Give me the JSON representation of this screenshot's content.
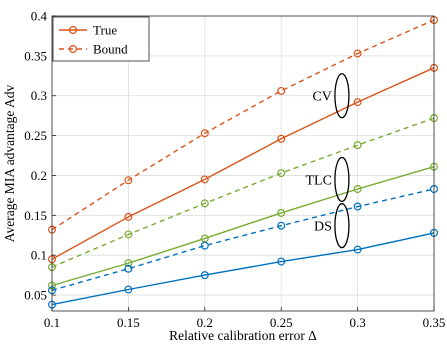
{
  "chart_data": {
    "type": "line",
    "xlabel": "Relative calibration error  Δ",
    "ylabel": "Average MIA advantage  Adv",
    "x": [
      0.1,
      0.15,
      0.2,
      0.25,
      0.3,
      0.35
    ],
    "xlim": [
      0.1,
      0.35
    ],
    "ylim": [
      0.03,
      0.4
    ],
    "xticks": [
      "0.1",
      "0.15",
      "0.2",
      "0.25",
      "0.3",
      "0.35"
    ],
    "yticks": [
      "0.05",
      "0.1",
      "0.15",
      "0.2",
      "0.25",
      "0.3",
      "0.35",
      "0.4"
    ],
    "grid": true,
    "legend_placement": "top-left",
    "legend": [
      {
        "label": "True",
        "style": "solid",
        "color": "#d95319"
      },
      {
        "label": "Bound",
        "style": "dashed",
        "color": "#d95319"
      }
    ],
    "series": [
      {
        "group": "CV",
        "kind": "True",
        "color": "#d95319",
        "style": "solid",
        "values": [
          0.095,
          0.148,
          0.195,
          0.246,
          0.292,
          0.335
        ]
      },
      {
        "group": "CV",
        "kind": "Bound",
        "color": "#d95319",
        "style": "dashed",
        "values": [
          0.132,
          0.194,
          0.253,
          0.306,
          0.353,
          0.395
        ]
      },
      {
        "group": "TLC",
        "kind": "True",
        "color": "#77ac30",
        "style": "solid",
        "values": [
          0.062,
          0.09,
          0.121,
          0.153,
          0.183,
          0.211
        ]
      },
      {
        "group": "TLC",
        "kind": "Bound",
        "color": "#77ac30",
        "style": "dashed",
        "values": [
          0.085,
          0.126,
          0.165,
          0.203,
          0.238,
          0.272
        ]
      },
      {
        "group": "DS",
        "kind": "True",
        "color": "#0072bd",
        "style": "solid",
        "values": [
          0.038,
          0.057,
          0.075,
          0.092,
          0.107,
          0.128
        ]
      },
      {
        "group": "DS",
        "kind": "Bound",
        "color": "#0072bd",
        "style": "dashed",
        "values": [
          0.056,
          0.083,
          0.112,
          0.137,
          0.161,
          0.183
        ]
      }
    ],
    "annotations": [
      {
        "label": "CV",
        "x": 0.276,
        "y": 0.3
      },
      {
        "label": "TLC",
        "x": 0.276,
        "y": 0.195
      },
      {
        "label": "DS",
        "x": 0.276,
        "y": 0.137
      }
    ]
  }
}
